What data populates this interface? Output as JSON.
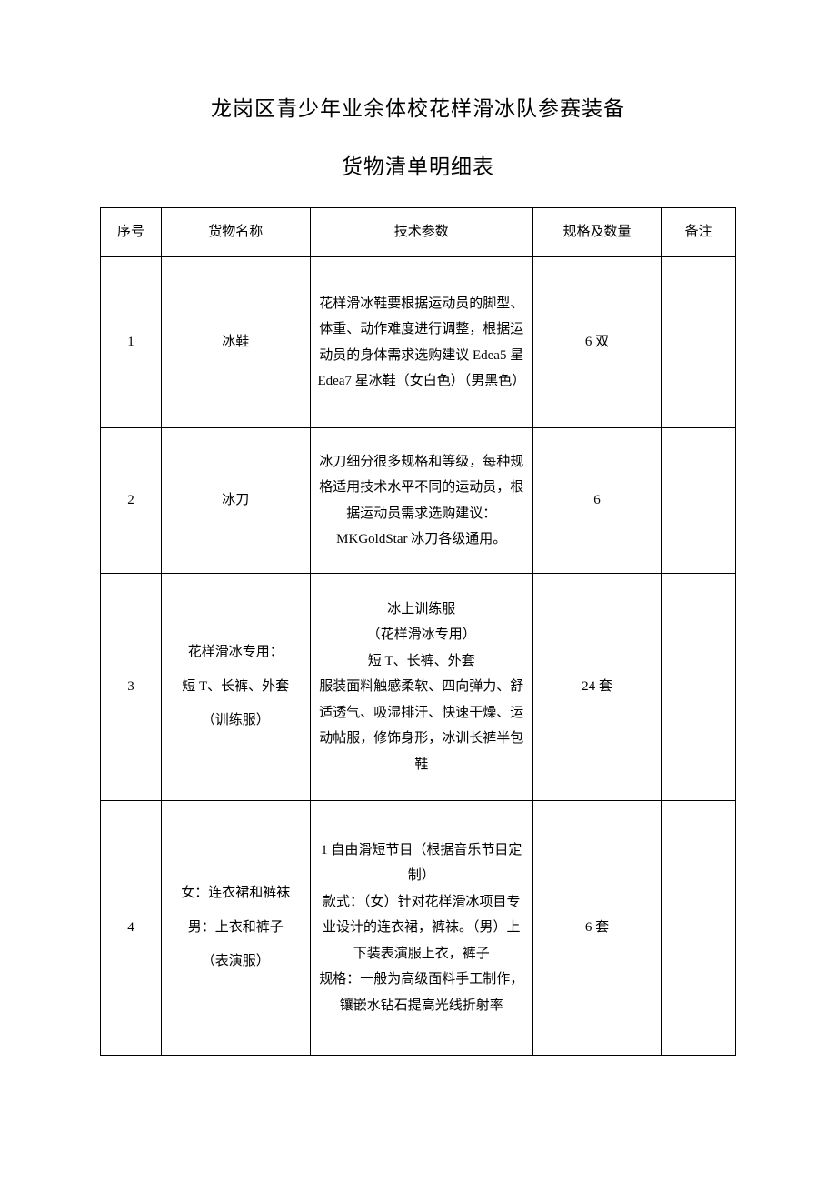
{
  "document": {
    "title": "龙岗区青少年业余体校花样滑冰队参赛装备",
    "subtitle": "货物清单明细表"
  },
  "table": {
    "headers": {
      "seq": "序号",
      "name": "货物名称",
      "spec": "技术参数",
      "qty": "规格及数量",
      "remark": "备注"
    },
    "rows": [
      {
        "seq": "1",
        "name": "冰鞋",
        "spec": "花样滑冰鞋要根据运动员的脚型、体重、动作难度进行调整，根据运动员的身体需求选购建议 Edea5 星 Edea7 星冰鞋（女白色）（男黑色）",
        "qty": "6 双",
        "remark": ""
      },
      {
        "seq": "2",
        "name": "冰刀",
        "spec": "冰刀细分很多规格和等级，每种规格适用技术水平不同的运动员，根据运动员需求选购建议：MKGoldStar 冰刀各级通用。",
        "qty": "6",
        "remark": ""
      },
      {
        "seq": "3",
        "name_line1": "花样滑冰专用：",
        "name_line2": "短 T、长裤、外套",
        "name_line3": "（训练服）",
        "spec_line1": "冰上训练服",
        "spec_line2": "（花样滑冰专用）",
        "spec_line3": "短 T、长裤、外套",
        "spec_line4": "服装面料触感柔软、四向弹力、舒适透气、吸湿排汗、快速干燥、运动帖服，修饰身形，冰训长裤半包鞋",
        "qty": "24 套",
        "remark": ""
      },
      {
        "seq": "4",
        "name_line1": "女：连衣裙和裤袜",
        "name_line2": "男：上衣和裤子",
        "name_line3": "（表演服）",
        "spec_line1": "1 自由滑短节目（根据音乐节目定制）",
        "spec_line2": "款式：（女）针对花样滑冰项目专业设计的连衣裙，裤袜。（男）上下装表演服上衣，裤子",
        "spec_line3": "规格：一般为高级面料手工制作，镶嵌水钻石提高光线折射率",
        "qty": "6 套",
        "remark": ""
      }
    ]
  },
  "styling": {
    "background_color": "#ffffff",
    "text_color": "#000000",
    "border_color": "#000000",
    "title_fontsize": 23,
    "body_fontsize": 15,
    "font_family": "SimSun"
  }
}
